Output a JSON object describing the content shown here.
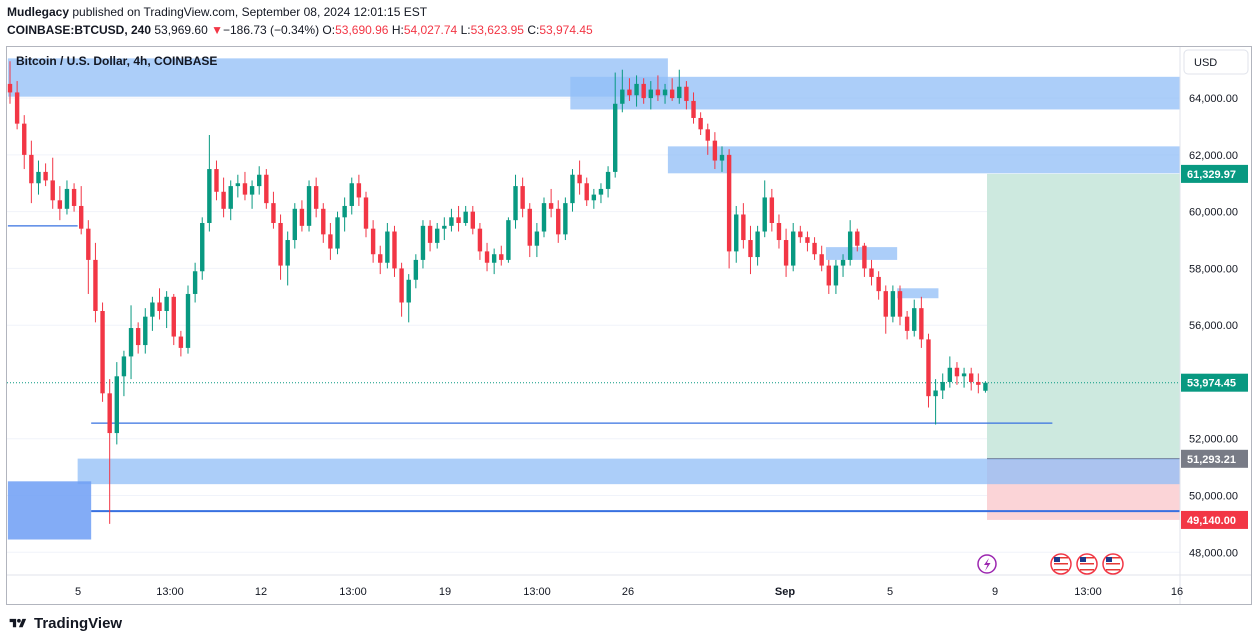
{
  "header": {
    "author": "Mudlegacy",
    "published_text": "published on TradingView.com, September 08, 2024 12:01:15 EST",
    "symbol": "COINBASE:BTCUSD, 240",
    "last_price": "53,969.60",
    "change_arrow": "▼",
    "change": "−186.73 (−0.34%)",
    "o_label": "O:",
    "o_value": "53,690.96",
    "h_label": "H:",
    "h_value": "54,027.74",
    "l_label": "L:",
    "l_value": "53,623.95",
    "c_label": "C:",
    "c_value": "53,974.45"
  },
  "chart_data": {
    "type": "candlestick",
    "title": "Bitcoin / U.S. Dollar, 4h, COINBASE",
    "currency": "USD",
    "y_range": [
      47200,
      65800
    ],
    "y_ticks": [
      {
        "value": 64000,
        "label": "64,000.00"
      },
      {
        "value": 62000,
        "label": "62,000.00"
      },
      {
        "value": 60000,
        "label": "60,000.00"
      },
      {
        "value": 58000,
        "label": "58,000.00"
      },
      {
        "value": 56000,
        "label": "56,000.00"
      },
      {
        "value": 52000,
        "label": "52,000.00"
      },
      {
        "value": 50000,
        "label": "50,000.00"
      },
      {
        "value": 48000,
        "label": "48,000.00"
      }
    ],
    "x_ticks": [
      {
        "label": "5",
        "bold": false
      },
      {
        "label": "13:00",
        "bold": false
      },
      {
        "label": "12",
        "bold": false
      },
      {
        "label": "13:00",
        "bold": false
      },
      {
        "label": "19",
        "bold": false
      },
      {
        "label": "13:00",
        "bold": false
      },
      {
        "label": "26",
        "bold": false
      },
      {
        "label": "Sep",
        "bold": true
      },
      {
        "label": "5",
        "bold": false
      },
      {
        "label": "9",
        "bold": false
      },
      {
        "label": "13:00",
        "bold": false
      },
      {
        "label": "16",
        "bold": false
      }
    ],
    "price_labels": [
      {
        "value": 61329.97,
        "label": "61,329.97",
        "color": "#089981"
      },
      {
        "value": 53974.45,
        "label": "53,974.45",
        "color": "#089981"
      },
      {
        "value": 51293.21,
        "label": "51,293.21",
        "color": "#787b86"
      },
      {
        "value": 49140.0,
        "label": "49,140.00",
        "color": "#f23645"
      }
    ],
    "current_price": 53974.45,
    "zones": [
      {
        "price_top": 65400,
        "price_bottom": 64050,
        "time_start": "Aug 2",
        "time_end": "Aug 27"
      },
      {
        "price_top": 64750,
        "price_bottom": 63600,
        "time_start": "Aug 26",
        "time_end": "open"
      },
      {
        "price_top": 62300,
        "price_bottom": 61350,
        "time_start": "Aug 27",
        "time_end": "open"
      },
      {
        "price_top": 58750,
        "price_bottom": 58300,
        "time_start": "Sep 4",
        "time_end": "Sep 5"
      },
      {
        "price_top": 57300,
        "price_bottom": 56950,
        "time_start": "Sep 5",
        "time_end": "Sep 6"
      },
      {
        "price_top": 51300,
        "price_bottom": 50400,
        "time_start": "Aug 4",
        "time_end": "open"
      },
      {
        "price_top": 50500,
        "price_bottom": 48450,
        "time_start": "Aug 2",
        "time_end": "Aug 5"
      }
    ],
    "horizontal_lines": [
      {
        "price": 59500,
        "time_start": "Aug 2",
        "time_end": "Aug 4"
      },
      {
        "price": 52550,
        "time_start": "Aug 5",
        "time_end": "Sep 11"
      },
      {
        "price": 49450,
        "time_start": "Aug 5",
        "time_end": "open"
      }
    ],
    "position": {
      "entry": 51293.21,
      "target": 61329.97,
      "stop": 49140.0
    },
    "candles": [
      {
        "o": 64500,
        "h": 65300,
        "l": 63800,
        "c": 64200
      },
      {
        "o": 64200,
        "h": 64600,
        "l": 62900,
        "c": 63100
      },
      {
        "o": 63100,
        "h": 63400,
        "l": 61500,
        "c": 62000
      },
      {
        "o": 62000,
        "h": 62500,
        "l": 60300,
        "c": 61000
      },
      {
        "o": 61000,
        "h": 61800,
        "l": 60600,
        "c": 61400
      },
      {
        "o": 61400,
        "h": 61700,
        "l": 60900,
        "c": 61100
      },
      {
        "o": 61100,
        "h": 61900,
        "l": 60100,
        "c": 60400
      },
      {
        "o": 60400,
        "h": 60900,
        "l": 59700,
        "c": 60100
      },
      {
        "o": 60100,
        "h": 61100,
        "l": 59900,
        "c": 60800
      },
      {
        "o": 60800,
        "h": 61000,
        "l": 60000,
        "c": 60200
      },
      {
        "o": 60200,
        "h": 60900,
        "l": 59200,
        "c": 59400
      },
      {
        "o": 59400,
        "h": 59700,
        "l": 57100,
        "c": 58300
      },
      {
        "o": 58300,
        "h": 58900,
        "l": 56100,
        "c": 56500
      },
      {
        "o": 56500,
        "h": 56800,
        "l": 53300,
        "c": 53600
      },
      {
        "o": 53600,
        "h": 54100,
        "l": 49000,
        "c": 52200
      },
      {
        "o": 52200,
        "h": 54700,
        "l": 51800,
        "c": 54200
      },
      {
        "o": 54200,
        "h": 55100,
        "l": 53500,
        "c": 54900
      },
      {
        "o": 54900,
        "h": 56700,
        "l": 54100,
        "c": 55900
      },
      {
        "o": 55900,
        "h": 56100,
        "l": 55000,
        "c": 55300
      },
      {
        "o": 55300,
        "h": 56600,
        "l": 55000,
        "c": 56300
      },
      {
        "o": 56300,
        "h": 57000,
        "l": 55800,
        "c": 56800
      },
      {
        "o": 56800,
        "h": 57300,
        "l": 56200,
        "c": 56500
      },
      {
        "o": 56500,
        "h": 57200,
        "l": 55900,
        "c": 57000
      },
      {
        "o": 57000,
        "h": 57100,
        "l": 55300,
        "c": 55600
      },
      {
        "o": 55600,
        "h": 55800,
        "l": 54900,
        "c": 55200
      },
      {
        "o": 55200,
        "h": 57400,
        "l": 55000,
        "c": 57100
      },
      {
        "o": 57100,
        "h": 58200,
        "l": 56800,
        "c": 57900
      },
      {
        "o": 57900,
        "h": 59800,
        "l": 57600,
        "c": 59600
      },
      {
        "o": 59600,
        "h": 62700,
        "l": 59300,
        "c": 61500
      },
      {
        "o": 61500,
        "h": 61800,
        "l": 60400,
        "c": 60700
      },
      {
        "o": 60700,
        "h": 61200,
        "l": 59800,
        "c": 60100
      },
      {
        "o": 60100,
        "h": 61100,
        "l": 59700,
        "c": 60900
      },
      {
        "o": 60900,
        "h": 61300,
        "l": 60500,
        "c": 61000
      },
      {
        "o": 61000,
        "h": 61400,
        "l": 60400,
        "c": 60600
      },
      {
        "o": 60600,
        "h": 61100,
        "l": 60100,
        "c": 60900
      },
      {
        "o": 60900,
        "h": 61600,
        "l": 60600,
        "c": 61300
      },
      {
        "o": 61300,
        "h": 61500,
        "l": 60100,
        "c": 60300
      },
      {
        "o": 60300,
        "h": 60700,
        "l": 59400,
        "c": 59600
      },
      {
        "o": 59600,
        "h": 59900,
        "l": 57600,
        "c": 58100
      },
      {
        "o": 58100,
        "h": 59300,
        "l": 57400,
        "c": 59000
      },
      {
        "o": 59000,
        "h": 60300,
        "l": 58700,
        "c": 60100
      },
      {
        "o": 60100,
        "h": 60400,
        "l": 59300,
        "c": 59500
      },
      {
        "o": 59500,
        "h": 61100,
        "l": 59300,
        "c": 60900
      },
      {
        "o": 60900,
        "h": 61200,
        "l": 59800,
        "c": 60100
      },
      {
        "o": 60100,
        "h": 60300,
        "l": 58900,
        "c": 59200
      },
      {
        "o": 59200,
        "h": 59600,
        "l": 58300,
        "c": 58700
      },
      {
        "o": 58700,
        "h": 60000,
        "l": 58500,
        "c": 59800
      },
      {
        "o": 59800,
        "h": 60500,
        "l": 59300,
        "c": 60200
      },
      {
        "o": 60200,
        "h": 61200,
        "l": 59900,
        "c": 61000
      },
      {
        "o": 61000,
        "h": 61300,
        "l": 60200,
        "c": 60500
      },
      {
        "o": 60500,
        "h": 60700,
        "l": 59100,
        "c": 59400
      },
      {
        "o": 59400,
        "h": 59700,
        "l": 58200,
        "c": 58500
      },
      {
        "o": 58500,
        "h": 58800,
        "l": 57800,
        "c": 58200
      },
      {
        "o": 58200,
        "h": 59600,
        "l": 58000,
        "c": 59300
      },
      {
        "o": 59300,
        "h": 59500,
        "l": 57700,
        "c": 58000
      },
      {
        "o": 58000,
        "h": 58200,
        "l": 56300,
        "c": 56800
      },
      {
        "o": 56800,
        "h": 57800,
        "l": 56100,
        "c": 57600
      },
      {
        "o": 57600,
        "h": 58500,
        "l": 57300,
        "c": 58300
      },
      {
        "o": 58300,
        "h": 59700,
        "l": 58000,
        "c": 59500
      },
      {
        "o": 59500,
        "h": 59700,
        "l": 58600,
        "c": 58900
      },
      {
        "o": 58900,
        "h": 59600,
        "l": 58700,
        "c": 59400
      },
      {
        "o": 59400,
        "h": 59800,
        "l": 59000,
        "c": 59500
      },
      {
        "o": 59500,
        "h": 60100,
        "l": 59300,
        "c": 59800
      },
      {
        "o": 59800,
        "h": 60200,
        "l": 59300,
        "c": 59600
      },
      {
        "o": 59600,
        "h": 60200,
        "l": 59500,
        "c": 60000
      },
      {
        "o": 60000,
        "h": 60200,
        "l": 59200,
        "c": 59400
      },
      {
        "o": 59400,
        "h": 59600,
        "l": 58300,
        "c": 58600
      },
      {
        "o": 58600,
        "h": 58900,
        "l": 57900,
        "c": 58200
      },
      {
        "o": 58200,
        "h": 58700,
        "l": 57800,
        "c": 58500
      },
      {
        "o": 58500,
        "h": 58800,
        "l": 58100,
        "c": 58300
      },
      {
        "o": 58300,
        "h": 59800,
        "l": 58200,
        "c": 59700
      },
      {
        "o": 59700,
        "h": 61300,
        "l": 59400,
        "c": 60900
      },
      {
        "o": 60900,
        "h": 61200,
        "l": 59800,
        "c": 60100
      },
      {
        "o": 60100,
        "h": 60300,
        "l": 58400,
        "c": 58800
      },
      {
        "o": 58800,
        "h": 59600,
        "l": 58400,
        "c": 59300
      },
      {
        "o": 59300,
        "h": 60500,
        "l": 59100,
        "c": 60300
      },
      {
        "o": 60300,
        "h": 60800,
        "l": 59800,
        "c": 60100
      },
      {
        "o": 60100,
        "h": 60400,
        "l": 58900,
        "c": 59200
      },
      {
        "o": 59200,
        "h": 60500,
        "l": 59000,
        "c": 60300
      },
      {
        "o": 60300,
        "h": 61500,
        "l": 60000,
        "c": 61300
      },
      {
        "o": 61300,
        "h": 61800,
        "l": 60600,
        "c": 61000
      },
      {
        "o": 61000,
        "h": 61200,
        "l": 60200,
        "c": 60400
      },
      {
        "o": 60400,
        "h": 60800,
        "l": 60100,
        "c": 60600
      },
      {
        "o": 60600,
        "h": 61000,
        "l": 60300,
        "c": 60800
      },
      {
        "o": 60800,
        "h": 61600,
        "l": 60500,
        "c": 61400
      },
      {
        "o": 61400,
        "h": 64900,
        "l": 61200,
        "c": 63800
      },
      {
        "o": 63800,
        "h": 65000,
        "l": 63500,
        "c": 64300
      },
      {
        "o": 64300,
        "h": 64700,
        "l": 63900,
        "c": 64100
      },
      {
        "o": 64100,
        "h": 64800,
        "l": 63700,
        "c": 64500
      },
      {
        "o": 64500,
        "h": 64700,
        "l": 63800,
        "c": 64000
      },
      {
        "o": 64000,
        "h": 64600,
        "l": 63600,
        "c": 64300
      },
      {
        "o": 64300,
        "h": 64800,
        "l": 63900,
        "c": 64100
      },
      {
        "o": 64100,
        "h": 64500,
        "l": 63800,
        "c": 64300
      },
      {
        "o": 64300,
        "h": 64700,
        "l": 63900,
        "c": 64000
      },
      {
        "o": 64000,
        "h": 65000,
        "l": 63800,
        "c": 64400
      },
      {
        "o": 64400,
        "h": 64600,
        "l": 63600,
        "c": 63900
      },
      {
        "o": 63900,
        "h": 64200,
        "l": 63100,
        "c": 63300
      },
      {
        "o": 63300,
        "h": 63500,
        "l": 62700,
        "c": 62900
      },
      {
        "o": 62900,
        "h": 63100,
        "l": 62000,
        "c": 62500
      },
      {
        "o": 62500,
        "h": 62800,
        "l": 61500,
        "c": 61800
      },
      {
        "o": 61800,
        "h": 62300,
        "l": 61400,
        "c": 62000
      },
      {
        "o": 62000,
        "h": 62200,
        "l": 58000,
        "c": 58600
      },
      {
        "o": 58600,
        "h": 60200,
        "l": 58200,
        "c": 59900
      },
      {
        "o": 59900,
        "h": 60300,
        "l": 58700,
        "c": 59000
      },
      {
        "o": 59000,
        "h": 59500,
        "l": 57800,
        "c": 58400
      },
      {
        "o": 58400,
        "h": 59500,
        "l": 58100,
        "c": 59300
      },
      {
        "o": 59300,
        "h": 61100,
        "l": 59100,
        "c": 60500
      },
      {
        "o": 60500,
        "h": 60800,
        "l": 59300,
        "c": 59600
      },
      {
        "o": 59600,
        "h": 59900,
        "l": 58700,
        "c": 59000
      },
      {
        "o": 59000,
        "h": 59400,
        "l": 57700,
        "c": 58100
      },
      {
        "o": 58100,
        "h": 59600,
        "l": 57900,
        "c": 59300
      },
      {
        "o": 59300,
        "h": 59500,
        "l": 58900,
        "c": 59100
      },
      {
        "o": 59100,
        "h": 59300,
        "l": 58600,
        "c": 58900
      },
      {
        "o": 58900,
        "h": 59100,
        "l": 58300,
        "c": 58500
      },
      {
        "o": 58500,
        "h": 58800,
        "l": 57900,
        "c": 58100
      },
      {
        "o": 58100,
        "h": 58300,
        "l": 57100,
        "c": 57400
      },
      {
        "o": 57400,
        "h": 58300,
        "l": 57100,
        "c": 58100
      },
      {
        "o": 58100,
        "h": 58500,
        "l": 57700,
        "c": 58300
      },
      {
        "o": 58300,
        "h": 59700,
        "l": 58100,
        "c": 59300
      },
      {
        "o": 59300,
        "h": 59400,
        "l": 58600,
        "c": 58800
      },
      {
        "o": 58800,
        "h": 58900,
        "l": 57700,
        "c": 58000
      },
      {
        "o": 58000,
        "h": 58300,
        "l": 57400,
        "c": 57700
      },
      {
        "o": 57700,
        "h": 57900,
        "l": 56900,
        "c": 57200
      },
      {
        "o": 57200,
        "h": 57400,
        "l": 55700,
        "c": 56300
      },
      {
        "o": 56300,
        "h": 57400,
        "l": 56100,
        "c": 57200
      },
      {
        "o": 57200,
        "h": 57400,
        "l": 56000,
        "c": 56300
      },
      {
        "o": 56300,
        "h": 56500,
        "l": 55500,
        "c": 55800
      },
      {
        "o": 55800,
        "h": 56900,
        "l": 55600,
        "c": 56600
      },
      {
        "o": 56600,
        "h": 57000,
        "l": 55200,
        "c": 55500
      },
      {
        "o": 55500,
        "h": 55700,
        "l": 53100,
        "c": 53500
      },
      {
        "o": 53500,
        "h": 54100,
        "l": 52500,
        "c": 53700
      },
      {
        "o": 53700,
        "h": 54300,
        "l": 53400,
        "c": 54000
      },
      {
        "o": 54000,
        "h": 54900,
        "l": 53800,
        "c": 54500
      },
      {
        "o": 54500,
        "h": 54700,
        "l": 53900,
        "c": 54200
      },
      {
        "o": 54200,
        "h": 54500,
        "l": 53800,
        "c": 54300
      },
      {
        "o": 54300,
        "h": 54500,
        "l": 53700,
        "c": 54000
      },
      {
        "o": 54000,
        "h": 54300,
        "l": 53600,
        "c": 53900
      },
      {
        "o": 53691,
        "h": 54028,
        "l": 53624,
        "c": 53974
      }
    ]
  },
  "events": {
    "lightning_icon": "lightning-icon",
    "flag_icons": [
      "us-flag-icon",
      "us-flag-icon",
      "us-flag-icon"
    ]
  },
  "footer": {
    "brand": "TradingView"
  },
  "colors": {
    "up": "#089981",
    "down": "#f23645",
    "zone": "#90bdf7",
    "zone_deep": "#6d9ef5",
    "line": "#3770e0",
    "target_fill": "#cde9df",
    "stop_fill": "#fbd4d7"
  }
}
